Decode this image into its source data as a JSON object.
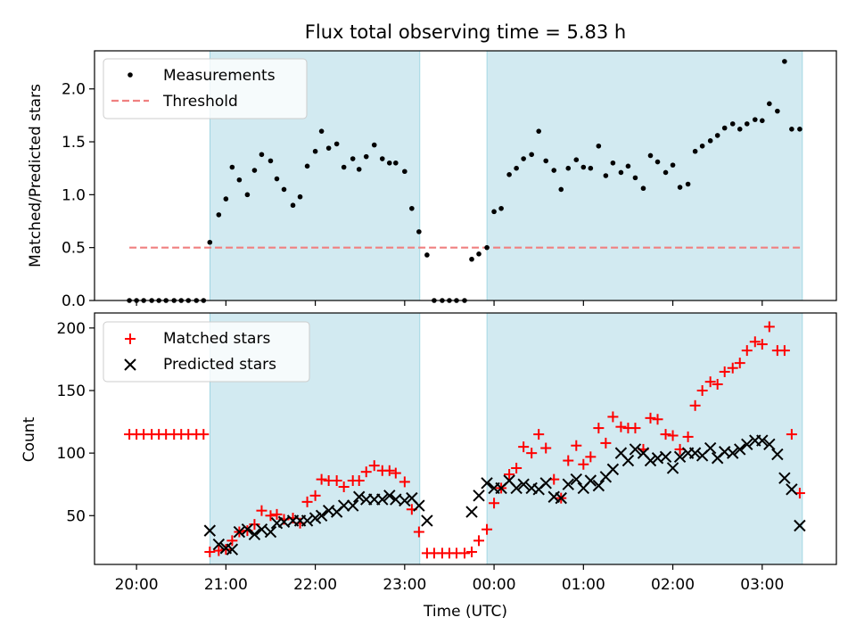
{
  "chart_data": [
    {
      "type": "scatter",
      "title": "Flux total observing time = 5.83 h",
      "xlabel": "",
      "ylabel": "Matched/Predicted stars",
      "xlim": [
        -0.47,
        7.83
      ],
      "ylim": [
        0,
        2.36
      ],
      "yticks": [
        0,
        0.5,
        1.0,
        1.5,
        2.0
      ],
      "ytick_labels": [
        "0.0",
        "0.5",
        "1.0",
        "1.5",
        "2.0"
      ],
      "legend": {
        "position": "top-left",
        "entries": [
          "Measurements",
          "Threshold"
        ]
      },
      "shaded_intervals": [
        [
          0.82,
          3.17
        ],
        [
          3.92,
          7.45
        ]
      ],
      "threshold": {
        "y": 0.5,
        "x_range": [
          -0.08,
          7.45
        ],
        "color": "#f08080"
      },
      "series": [
        {
          "name": "Measurements",
          "color": "#000000",
          "points": [
            [
              -0.08,
              0
            ],
            [
              0.0,
              0
            ],
            [
              0.08,
              0
            ],
            [
              0.17,
              0
            ],
            [
              0.25,
              0
            ],
            [
              0.33,
              0
            ],
            [
              0.42,
              0
            ],
            [
              0.5,
              0
            ],
            [
              0.58,
              0
            ],
            [
              0.67,
              0
            ],
            [
              0.75,
              0
            ],
            [
              0.82,
              0.55
            ],
            [
              0.92,
              0.81
            ],
            [
              1.0,
              0.96
            ],
            [
              1.07,
              1.26
            ],
            [
              1.15,
              1.14
            ],
            [
              1.24,
              1.0
            ],
            [
              1.32,
              1.23
            ],
            [
              1.4,
              1.38
            ],
            [
              1.5,
              1.32
            ],
            [
              1.57,
              1.15
            ],
            [
              1.65,
              1.05
            ],
            [
              1.75,
              0.9
            ],
            [
              1.83,
              0.98
            ],
            [
              1.91,
              1.27
            ],
            [
              2.0,
              1.41
            ],
            [
              2.07,
              1.6
            ],
            [
              2.15,
              1.44
            ],
            [
              2.24,
              1.48
            ],
            [
              2.32,
              1.26
            ],
            [
              2.42,
              1.34
            ],
            [
              2.49,
              1.24
            ],
            [
              2.57,
              1.36
            ],
            [
              2.66,
              1.47
            ],
            [
              2.75,
              1.34
            ],
            [
              2.83,
              1.3
            ],
            [
              2.9,
              1.3
            ],
            [
              3.0,
              1.22
            ],
            [
              3.08,
              0.87
            ],
            [
              3.16,
              0.65
            ],
            [
              3.25,
              0.43
            ],
            [
              3.33,
              0
            ],
            [
              3.42,
              0
            ],
            [
              3.5,
              0
            ],
            [
              3.58,
              0
            ],
            [
              3.67,
              0
            ],
            [
              3.75,
              0.39
            ],
            [
              3.83,
              0.44
            ],
            [
              3.92,
              0.5
            ],
            [
              4.0,
              0.84
            ],
            [
              4.08,
              0.87
            ],
            [
              4.17,
              1.19
            ],
            [
              4.25,
              1.25
            ],
            [
              4.33,
              1.34
            ],
            [
              4.42,
              1.38
            ],
            [
              4.5,
              1.6
            ],
            [
              4.58,
              1.32
            ],
            [
              4.67,
              1.23
            ],
            [
              4.75,
              1.05
            ],
            [
              4.83,
              1.25
            ],
            [
              4.92,
              1.33
            ],
            [
              5.0,
              1.26
            ],
            [
              5.08,
              1.25
            ],
            [
              5.17,
              1.46
            ],
            [
              5.25,
              1.18
            ],
            [
              5.33,
              1.3
            ],
            [
              5.42,
              1.21
            ],
            [
              5.5,
              1.27
            ],
            [
              5.58,
              1.16
            ],
            [
              5.67,
              1.06
            ],
            [
              5.75,
              1.37
            ],
            [
              5.83,
              1.31
            ],
            [
              5.92,
              1.21
            ],
            [
              6.0,
              1.28
            ],
            [
              6.08,
              1.07
            ],
            [
              6.17,
              1.1
            ],
            [
              6.25,
              1.41
            ],
            [
              6.33,
              1.46
            ],
            [
              6.42,
              1.51
            ],
            [
              6.5,
              1.56
            ],
            [
              6.58,
              1.63
            ],
            [
              6.67,
              1.67
            ],
            [
              6.75,
              1.62
            ],
            [
              6.83,
              1.67
            ],
            [
              6.92,
              1.71
            ],
            [
              7.0,
              1.7
            ],
            [
              7.08,
              1.86
            ],
            [
              7.17,
              1.79
            ],
            [
              7.25,
              2.26
            ],
            [
              7.33,
              1.62
            ],
            [
              7.42,
              1.62
            ]
          ]
        }
      ]
    },
    {
      "type": "scatter",
      "title": "",
      "xlabel": "Time (UTC)",
      "ylabel": "Count",
      "xlim": [
        -0.47,
        7.83
      ],
      "ylim": [
        11,
        212
      ],
      "xticks": [
        0,
        1,
        2,
        3,
        4,
        5,
        6,
        7
      ],
      "xtick_labels": [
        "20:00",
        "21:00",
        "22:00",
        "23:00",
        "00:00",
        "01:00",
        "02:00",
        "03:00"
      ],
      "yticks": [
        50,
        100,
        150,
        200
      ],
      "ytick_labels": [
        "50",
        "100",
        "150",
        "200"
      ],
      "legend": {
        "position": "top-left",
        "entries": [
          "Matched stars",
          "Predicted stars"
        ]
      },
      "shaded_intervals": [
        [
          0.82,
          3.17
        ],
        [
          3.92,
          7.45
        ]
      ],
      "series": [
        {
          "name": "Matched stars",
          "marker": "+",
          "color": "#ff0000",
          "points": [
            [
              -0.08,
              115
            ],
            [
              0.0,
              115
            ],
            [
              0.08,
              115
            ],
            [
              0.17,
              115
            ],
            [
              0.25,
              115
            ],
            [
              0.33,
              115
            ],
            [
              0.42,
              115
            ],
            [
              0.5,
              115
            ],
            [
              0.58,
              115
            ],
            [
              0.67,
              115
            ],
            [
              0.75,
              115
            ],
            [
              0.82,
              21
            ],
            [
              0.92,
              22
            ],
            [
              1.0,
              23
            ],
            [
              1.07,
              30
            ],
            [
              1.15,
              37
            ],
            [
              1.24,
              38
            ],
            [
              1.32,
              43
            ],
            [
              1.4,
              54
            ],
            [
              1.5,
              50
            ],
            [
              1.57,
              51
            ],
            [
              1.65,
              47
            ],
            [
              1.75,
              48
            ],
            [
              1.83,
              44
            ],
            [
              1.91,
              61
            ],
            [
              2.0,
              66
            ],
            [
              2.07,
              79
            ],
            [
              2.15,
              78
            ],
            [
              2.24,
              78
            ],
            [
              2.32,
              73
            ],
            [
              2.42,
              78
            ],
            [
              2.49,
              78
            ],
            [
              2.57,
              85
            ],
            [
              2.66,
              90
            ],
            [
              2.75,
              86
            ],
            [
              2.83,
              86
            ],
            [
              2.9,
              84
            ],
            [
              3.0,
              77
            ],
            [
              3.08,
              55
            ],
            [
              3.16,
              37
            ],
            [
              3.25,
              20
            ],
            [
              3.33,
              20
            ],
            [
              3.42,
              20
            ],
            [
              3.5,
              20
            ],
            [
              3.58,
              20
            ],
            [
              3.67,
              20
            ],
            [
              3.75,
              21
            ],
            [
              3.83,
              30
            ],
            [
              3.92,
              39
            ],
            [
              4.0,
              60
            ],
            [
              4.08,
              72
            ],
            [
              4.17,
              83
            ],
            [
              4.25,
              88
            ],
            [
              4.33,
              105
            ],
            [
              4.42,
              100
            ],
            [
              4.5,
              115
            ],
            [
              4.58,
              104
            ],
            [
              4.67,
              79
            ],
            [
              4.75,
              64
            ],
            [
              4.83,
              94
            ],
            [
              4.92,
              106
            ],
            [
              5.0,
              91
            ],
            [
              5.08,
              97
            ],
            [
              5.17,
              120
            ],
            [
              5.25,
              108
            ],
            [
              5.33,
              129
            ],
            [
              5.42,
              121
            ],
            [
              5.5,
              120
            ],
            [
              5.58,
              120
            ],
            [
              5.67,
              103
            ],
            [
              5.75,
              128
            ],
            [
              5.83,
              127
            ],
            [
              5.92,
              115
            ],
            [
              6.0,
              114
            ],
            [
              6.08,
              103
            ],
            [
              6.17,
              113
            ],
            [
              6.25,
              138
            ],
            [
              6.33,
              150
            ],
            [
              6.42,
              157
            ],
            [
              6.5,
              155
            ],
            [
              6.58,
              165
            ],
            [
              6.67,
              168
            ],
            [
              6.75,
              172
            ],
            [
              6.83,
              182
            ],
            [
              6.92,
              189
            ],
            [
              7.0,
              187
            ],
            [
              7.08,
              201
            ],
            [
              7.17,
              182
            ],
            [
              7.25,
              182
            ],
            [
              7.33,
              115
            ],
            [
              7.42,
              68
            ]
          ]
        },
        {
          "name": "Predicted stars",
          "marker": "x",
          "color": "#000000",
          "points": [
            [
              0.82,
              38
            ],
            [
              0.92,
              27
            ],
            [
              1.0,
              24
            ],
            [
              1.07,
              23
            ],
            [
              1.15,
              37
            ],
            [
              1.24,
              39
            ],
            [
              1.32,
              35
            ],
            [
              1.4,
              39
            ],
            [
              1.5,
              37
            ],
            [
              1.57,
              44
            ],
            [
              1.65,
              45
            ],
            [
              1.75,
              46
            ],
            [
              1.83,
              46
            ],
            [
              1.91,
              46
            ],
            [
              2.0,
              48
            ],
            [
              2.07,
              50
            ],
            [
              2.15,
              54
            ],
            [
              2.24,
              53
            ],
            [
              2.32,
              58
            ],
            [
              2.42,
              58
            ],
            [
              2.49,
              65
            ],
            [
              2.57,
              63
            ],
            [
              2.66,
              63
            ],
            [
              2.75,
              63
            ],
            [
              2.83,
              66
            ],
            [
              2.9,
              63
            ],
            [
              3.0,
              62
            ],
            [
              3.08,
              64
            ],
            [
              3.16,
              58
            ],
            [
              3.25,
              46
            ],
            [
              3.75,
              53
            ],
            [
              3.83,
              66
            ],
            [
              3.92,
              76
            ],
            [
              4.0,
              72
            ],
            [
              4.08,
              72
            ],
            [
              4.17,
              78
            ],
            [
              4.25,
              72
            ],
            [
              4.33,
              75
            ],
            [
              4.42,
              72
            ],
            [
              4.5,
              71
            ],
            [
              4.58,
              76
            ],
            [
              4.67,
              65
            ],
            [
              4.75,
              64
            ],
            [
              4.83,
              75
            ],
            [
              4.92,
              79
            ],
            [
              5.0,
              72
            ],
            [
              5.08,
              78
            ],
            [
              5.17,
              74
            ],
            [
              5.25,
              81
            ],
            [
              5.33,
              87
            ],
            [
              5.42,
              100
            ],
            [
              5.5,
              94
            ],
            [
              5.58,
              103
            ],
            [
              5.67,
              100
            ],
            [
              5.75,
              94
            ],
            [
              5.83,
              96
            ],
            [
              5.92,
              97
            ],
            [
              6.0,
              88
            ],
            [
              6.08,
              97
            ],
            [
              6.17,
              100
            ],
            [
              6.25,
              100
            ],
            [
              6.33,
              98
            ],
            [
              6.42,
              104
            ],
            [
              6.5,
              96
            ],
            [
              6.58,
              101
            ],
            [
              6.67,
              100
            ],
            [
              6.75,
              103
            ],
            [
              6.83,
              107
            ],
            [
              6.92,
              110
            ],
            [
              7.0,
              110
            ],
            [
              7.08,
              107
            ],
            [
              7.17,
              99
            ],
            [
              7.25,
              80
            ],
            [
              7.33,
              71
            ],
            [
              7.42,
              42
            ]
          ]
        }
      ]
    }
  ]
}
